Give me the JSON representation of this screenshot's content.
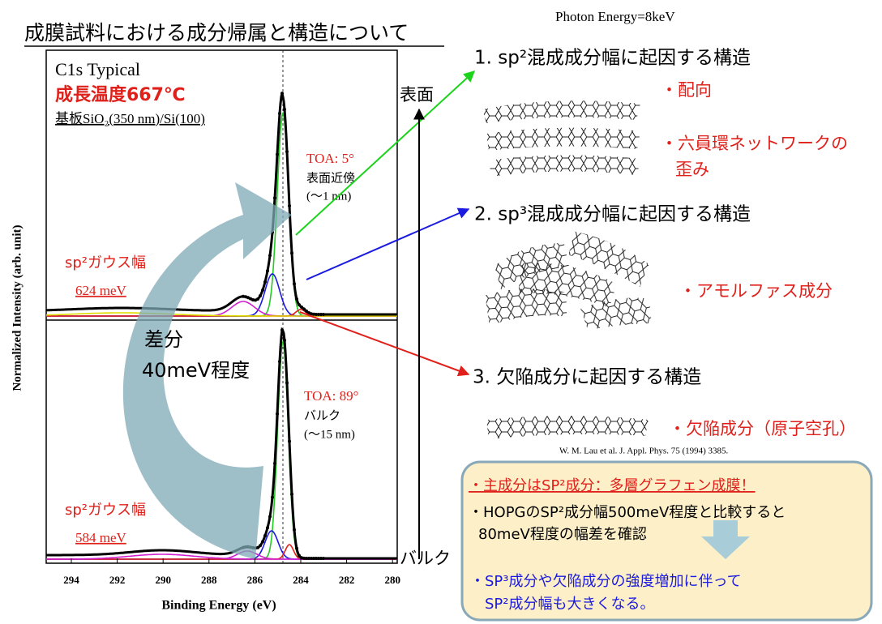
{
  "title": "成膜試料における成分帰属と構造について",
  "spectra": {
    "y_label": "Normalized Intensity (arb. unit)",
    "x_label": "Binding Energy (eV)",
    "x_ticks": [
      294,
      292,
      290,
      288,
      286,
      284,
      282,
      280
    ],
    "top": {
      "line1": "C1s Typical",
      "line2": "成長温度667℃",
      "line3": "基板SiO₂(350 nm)/Si(100)",
      "toa": "TOA: 5°",
      "toa_desc": "表面近傍",
      "depth": "(〜1 nm)",
      "gauss_label": "sp²ガウス幅",
      "gauss_width": "624 meV"
    },
    "difference": [
      "差分",
      "40meV程度"
    ],
    "bottom": {
      "toa": "TOA: 89°",
      "toa_desc": "バルク",
      "depth": "(〜15 nm)",
      "gauss_label": "sp²ガウス幅",
      "gauss_width": "584 meV"
    }
  },
  "right": {
    "photon": "Photon Energy=8keV",
    "surface": "表面",
    "bulk": "バルク",
    "items": [
      {
        "heading": "1. sp²混成成分幅に起因する構造",
        "notes": [
          "・配向",
          "・六員環ネットワークの",
          "歪み"
        ]
      },
      {
        "heading": "2. sp³混成成分幅に起因する構造",
        "notes": [
          "・アモルファス成分"
        ]
      },
      {
        "heading": "3. 欠陥成分に起因する構造",
        "notes": [
          "・欠陥成分（原子空孔）"
        ]
      }
    ],
    "reference": "W. M. Lau et al. J. Appl. Phys. 75 (1994) 3385.",
    "summary": [
      "・主成分はSP²成分：多層グラフェン成膜！",
      "・HOPGのSP²成分幅500meV程度と比較すると",
      "80meV程度の幅差を確認",
      "・SP³成分や欠陥成分の強度増加に伴って",
      "SP²成分幅も大きくなる。"
    ]
  }
}
